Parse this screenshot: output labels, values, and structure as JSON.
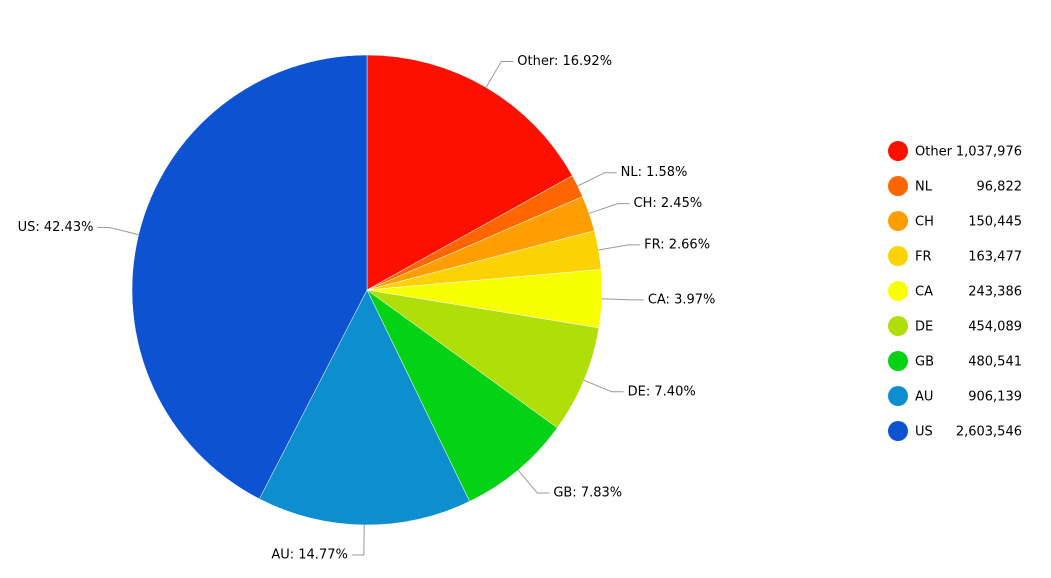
{
  "chart_data": {
    "type": "pie",
    "categories": [
      "Other",
      "NL",
      "CH",
      "FR",
      "CA",
      "DE",
      "GB",
      "AU",
      "US"
    ],
    "values": [
      1037976,
      96822,
      150445,
      163477,
      243386,
      454089,
      480541,
      906139,
      2603546
    ],
    "value_labels": [
      "1,037,976",
      "96,822",
      "150,445",
      "163,477",
      "243,386",
      "454,089",
      "480,541",
      "906,139",
      "2,603,546"
    ],
    "slice_labels": [
      "Other: 16.92%",
      "NL: 1.58%",
      "CH: 2.45%",
      "FR: 2.66%",
      "CA: 3.97%",
      "DE: 7.40%",
      "GB: 7.83%",
      "AU: 14.77%",
      "US: 42.43%"
    ],
    "colors": [
      "#ff0f00",
      "#ff6600",
      "#ff9e01",
      "#fcd202",
      "#f8ff01",
      "#b0de09",
      "#04d215",
      "#0d8ecf",
      "#0d52d1"
    ],
    "legend_position": "right"
  }
}
